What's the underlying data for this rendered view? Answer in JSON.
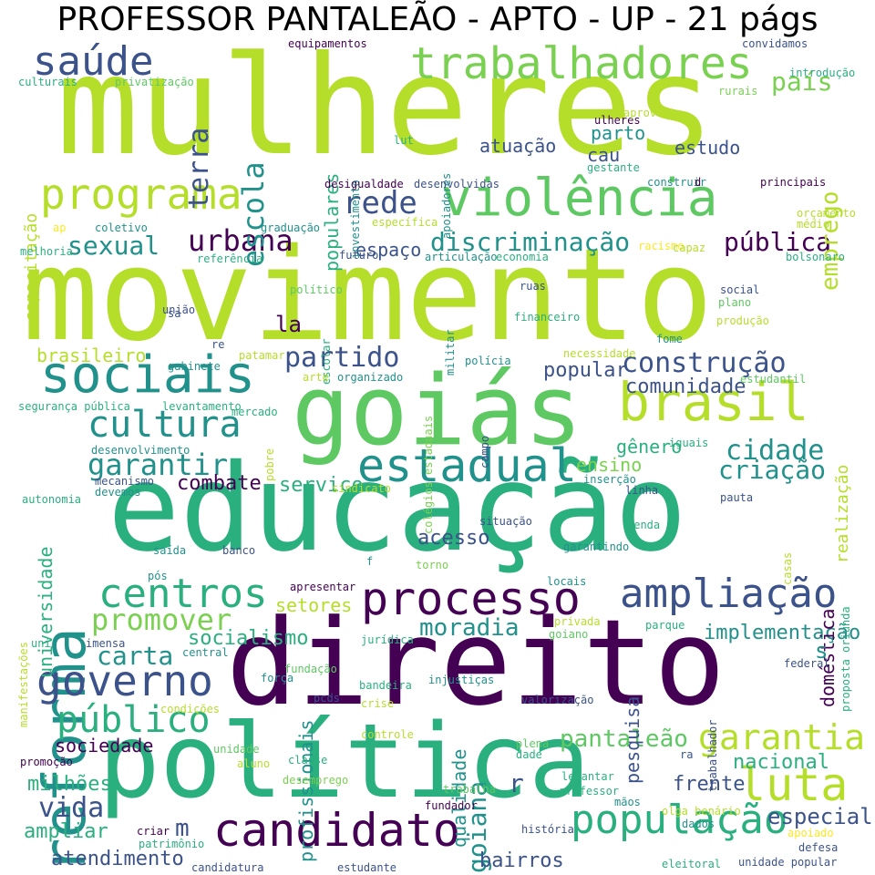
{
  "title": "PROFESSOR PANTALEÃO - APTO - UP - 21 págs",
  "colors": {
    "background": "#ffffff",
    "palette": [
      "#440154",
      "#3b528b",
      "#21918c",
      "#2ab07f",
      "#5ec962",
      "#7ad151",
      "#b5de2b",
      "#fde725"
    ]
  },
  "words": [
    "mulheres",
    "movimento",
    "educação",
    "direito",
    "política",
    "goiás",
    "trabalhadores",
    "violência",
    "programa",
    "saúde",
    "reforma",
    "sociais",
    "brasil",
    "estadual",
    "cultura",
    "governo",
    "processo",
    "ampliação",
    "centros",
    "candidato",
    "população",
    "luta",
    "público",
    "garantia",
    "cidade",
    "construção",
    "partido",
    "urbana",
    "rede",
    "sexual",
    "discriminação",
    "pública",
    "garantir",
    "criação",
    "moradia",
    "promover",
    "carta",
    "escola",
    "terra",
    "emprego",
    "país",
    "goiana",
    "vida",
    "pantaleão",
    "implementação",
    "comunidade",
    "popular",
    "especial",
    "frente",
    "nacional",
    "bairros",
    "atendimento",
    "ampliar",
    "sociedade",
    "milhões",
    "socialismo",
    "setores",
    "acesso",
    "serviço",
    "combate",
    "gênero",
    "ensino",
    "atuação",
    "parto",
    "cau",
    "estudo",
    "populares",
    "capacitação",
    "brasileiro",
    "universidade",
    "qualidade",
    "profissionais",
    "pesquisa",
    "doméstica",
    "realização",
    "espaço",
    "equipamentos",
    "convidamos",
    "culturais",
    "privatização",
    "introdução",
    "rurais",
    "ulheres",
    "aprovada",
    "lut",
    "investimento",
    "apoiadores",
    "gestante",
    "construir",
    "principais",
    "desigualdade",
    "desenvolvidas",
    "orçamento",
    "médio",
    "coletivo",
    "graduação",
    "específica",
    "melhoria",
    "referência",
    "futuro",
    "articulação",
    "economia",
    "racismo",
    "capaz",
    "bolsonaro",
    "político",
    "ruas",
    "social",
    "plano",
    "união",
    "militar",
    "escolar",
    "colégios estaduais",
    "financeiro",
    "fome",
    "produção",
    "gabinete",
    "patamar",
    "arte",
    "organizado",
    "polícia",
    "necessidade",
    "estudantil",
    "segurança pública",
    "levantamento",
    "mercado",
    "campo",
    "pobre",
    "iguais",
    "desenvolvimento",
    "mecanismo",
    "devemos",
    "sindicato",
    "autonomia",
    "inserção",
    "linha",
    "pauta",
    "situação",
    "renda",
    "casas",
    "proposta oriunda",
    "saída",
    "banco",
    "garantindo",
    "torno",
    "apresentar",
    "locais",
    "manifestações",
    "uni",
    "imensa",
    "central",
    "privada",
    "goiano",
    "parque",
    "fundação",
    "força",
    "bandeira",
    "injustiças",
    "federal",
    "trabalhador",
    "condições",
    "pcds",
    "crise",
    "valorização",
    "controle",
    "unidade",
    "aluno",
    "classe",
    "plena",
    "dade",
    "promoção",
    "desemprego",
    "trabalha",
    "levantar",
    "professor",
    "mãos",
    "fundador",
    "olga benário",
    "criar",
    "patrimônio",
    "candidatura",
    "estudante",
    "história",
    "dados",
    "apoiado",
    "eleitoral",
    "unidade popular",
    "defesa",
    "jurídica",
    "ap",
    "la",
    "s",
    "m",
    "r",
    "f",
    "d",
    "re",
    "sa",
    "ra",
    "pós"
  ]
}
